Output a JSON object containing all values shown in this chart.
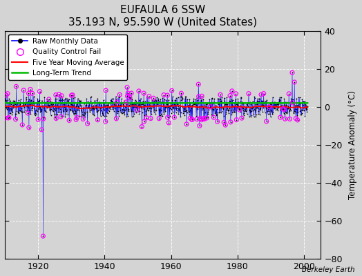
{
  "title": "EUFAULA 6 SSW",
  "subtitle": "35.193 N, 95.590 W (United States)",
  "ylabel": "Temperature Anomaly (°C)",
  "watermark": "Berkeley Earth",
  "xlim": [
    1910,
    2005
  ],
  "ylim": [
    -80,
    40
  ],
  "yticks": [
    -80,
    -60,
    -40,
    -20,
    0,
    20,
    40
  ],
  "xticks": [
    1920,
    1940,
    1960,
    1980,
    2000
  ],
  "fig_bg_color": "#d4d4d4",
  "plot_bg_color": "#d4d4d4",
  "grid_color": "#ffffff",
  "start_year": 1910.0,
  "n_months": 1092,
  "seed": 17,
  "raw_color": "#0000ff",
  "dot_color": "#000000",
  "qc_color": "#ff00ff",
  "moving_avg_color": "#ff0000",
  "trend_color": "#00bb00",
  "trend_value": 2.0,
  "outlier1_year": 1921.5,
  "outlier1_y": -68,
  "outlier1_connect_year": 1921.1,
  "outlier1_connect_y": -12,
  "outlier2_year": 1996.4,
  "outlier2_y": 18,
  "outlier3_year": 1997.0,
  "outlier3_y": 13
}
